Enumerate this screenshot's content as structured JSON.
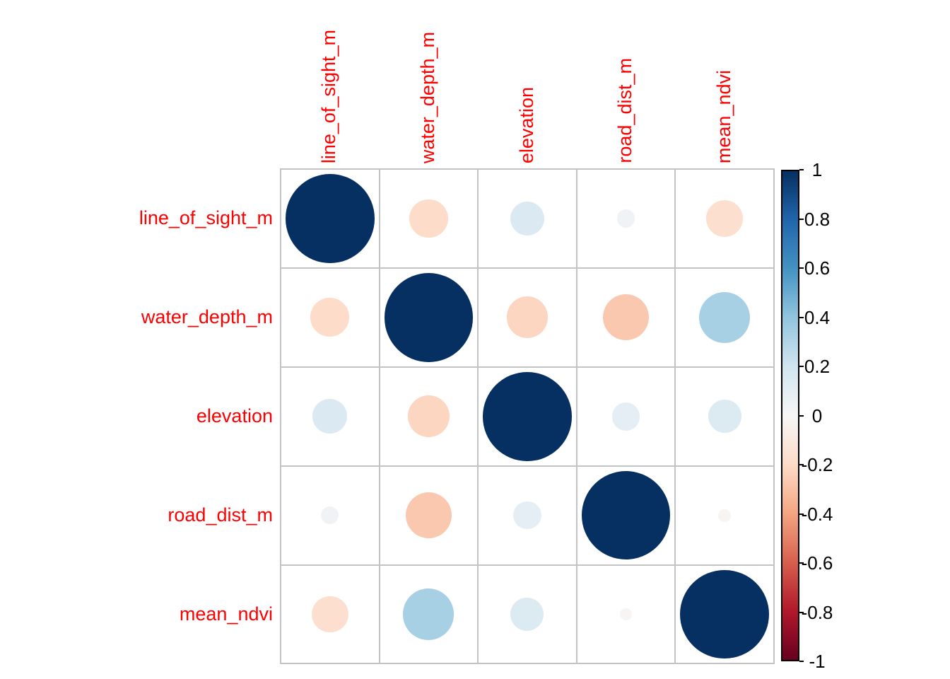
{
  "chart_data": {
    "type": "heatmap",
    "subtype": "correlation_matrix_circles",
    "title": "",
    "variables": [
      "line_of_sight_m",
      "water_depth_m",
      "elevation",
      "road_dist_m",
      "mean_ndvi"
    ],
    "matrix": [
      [
        1.0,
        -0.19,
        0.15,
        0.04,
        -0.17
      ],
      [
        -0.19,
        1.0,
        -0.22,
        -0.27,
        0.33
      ],
      [
        0.15,
        -0.22,
        1.0,
        0.1,
        0.14
      ],
      [
        0.04,
        -0.27,
        0.1,
        1.0,
        -0.02
      ],
      [
        -0.17,
        0.33,
        0.14,
        -0.02,
        1.0
      ]
    ],
    "encoding": "circle size = |r| (area), color = diverging red-blue",
    "colorbar": {
      "position": "right",
      "min": -1,
      "max": 1,
      "ticks": [
        "1",
        "0.8",
        "0.6",
        "0.4",
        "0.2",
        "0",
        "-0.2",
        "-0.4",
        "-0.6",
        "-0.8",
        "-1"
      ]
    },
    "palette_stops": [
      {
        "value": -1.0,
        "color": "#67001f"
      },
      {
        "value": -0.8,
        "color": "#b2182b"
      },
      {
        "value": -0.6,
        "color": "#d6604d"
      },
      {
        "value": -0.4,
        "color": "#f4a582"
      },
      {
        "value": -0.2,
        "color": "#fddbc7"
      },
      {
        "value": 0.0,
        "color": "#f7f7f7"
      },
      {
        "value": 0.2,
        "color": "#d1e5f0"
      },
      {
        "value": 0.4,
        "color": "#92c5de"
      },
      {
        "value": 0.6,
        "color": "#4393c3"
      },
      {
        "value": 0.8,
        "color": "#2166ac"
      },
      {
        "value": 1.0,
        "color": "#053061"
      }
    ],
    "label_color": "#ff0000",
    "tick_label_color": "#000000",
    "grid_color": "#c3c3c3",
    "background": "#ffffff",
    "legend_position": "right",
    "grid_on": true
  }
}
